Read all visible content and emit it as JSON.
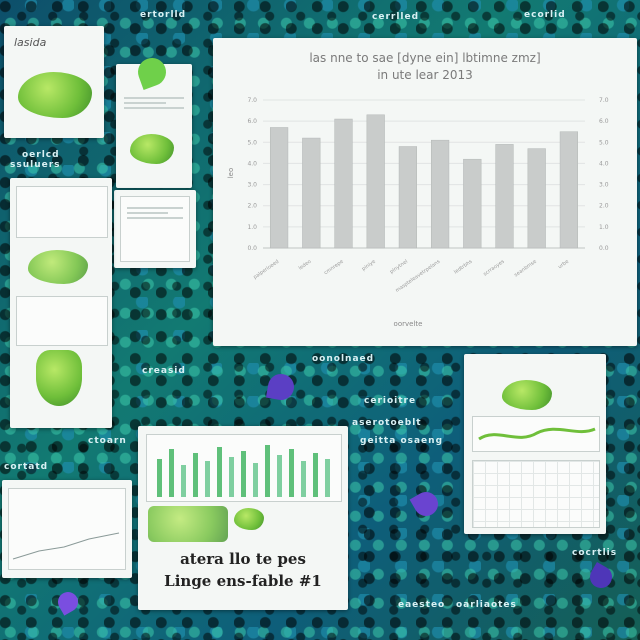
{
  "background": {
    "primary": "#0f5a66",
    "accent": "#3fb6a8"
  },
  "scattered_labels": [
    {
      "text": "ertorlld"
    },
    {
      "text": "cerrlled"
    },
    {
      "text": "ecorlid"
    },
    {
      "text": "oerlcd"
    },
    {
      "text": "ssuluers"
    },
    {
      "text": "creasid"
    },
    {
      "text": "oonolnaed"
    },
    {
      "text": "cerioitre"
    },
    {
      "text": "aserotoeblt"
    },
    {
      "text": "geitta osaeng"
    },
    {
      "text": "cortatd"
    },
    {
      "text": "eaesteo"
    },
    {
      "text": "oarliaotes"
    },
    {
      "text": "cocrtlis"
    },
    {
      "text": "ctoarn"
    }
  ],
  "top_left_card": {
    "title": "lasida"
  },
  "bottom_center_card": {
    "caption_line1": "atera llo te pes",
    "caption_line2": "Linge ens-fable #1"
  },
  "chart_data": {
    "type": "bar",
    "title": "las nne to sae [dyne ein] lbtimne zmz]",
    "subtitle": "in ute lear 2013",
    "categories": [
      "palperioeed",
      "ledeo",
      "cmnrepe",
      "piniye",
      "plnytnel",
      "maspteleavetrpelans",
      "ledtrbhs",
      "scrraoyes",
      "seanbmse",
      "urbe"
    ],
    "values": [
      5.7,
      5.2,
      6.1,
      6.3,
      4.8,
      5.1,
      4.2,
      4.9,
      4.7,
      5.5
    ],
    "ylim": [
      0,
      7
    ],
    "yticks": [
      "0.0",
      "1.0",
      "2.0",
      "3.0",
      "4.0",
      "5.0",
      "6.0",
      "7.0"
    ],
    "ylabel": "leo",
    "xlabel": "oorvelte",
    "grid": true,
    "bar_color": "#c9cccb"
  }
}
